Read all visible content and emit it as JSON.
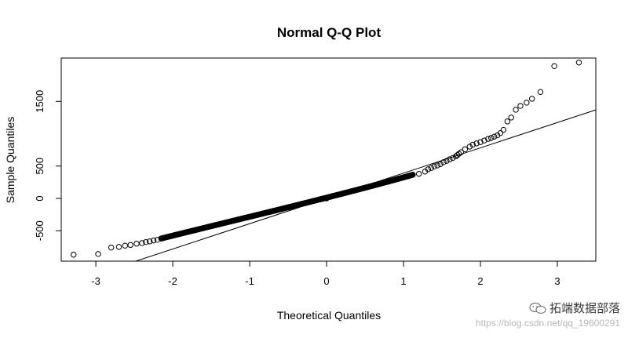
{
  "chart_data": {
    "type": "scatter",
    "title": "Normal Q-Q Plot",
    "xlabel": "Theoretical Quantiles",
    "ylabel": "Sample Quantiles",
    "xlim": [
      -3.45,
      3.5
    ],
    "ylim": [
      -970,
      2170
    ],
    "xticks": [
      -3,
      -2,
      -1,
      0,
      1,
      2,
      3
    ],
    "yticks": [
      -500,
      0,
      500,
      1500
    ],
    "xtick_labels": [
      "-3",
      "-2",
      "-1",
      "0",
      "1",
      "2",
      "3"
    ],
    "ytick_labels": [
      "-500",
      "0",
      "500",
      "1500"
    ],
    "grid": false,
    "reference_line": {
      "intercept": 0,
      "slope": 391
    },
    "points": [
      [
        -3.29,
        -870
      ],
      [
        -2.97,
        -860
      ],
      [
        -2.8,
        -760
      ],
      [
        -2.7,
        -750
      ],
      [
        -2.62,
        -730
      ],
      [
        -2.55,
        -720
      ],
      [
        -2.47,
        -700
      ],
      [
        -2.4,
        -690
      ],
      [
        -2.35,
        -675
      ],
      [
        -2.3,
        -665
      ],
      [
        -2.25,
        -650
      ],
      [
        -2.2,
        -640
      ],
      [
        -2.15,
        -620
      ],
      [
        0.0,
        0
      ],
      [
        1.12,
        365
      ],
      [
        1.2,
        380
      ],
      [
        1.28,
        415
      ],
      [
        1.32,
        450
      ],
      [
        1.36,
        470
      ],
      [
        1.4,
        495
      ],
      [
        1.44,
        510
      ],
      [
        1.48,
        530
      ],
      [
        1.52,
        560
      ],
      [
        1.56,
        580
      ],
      [
        1.6,
        605
      ],
      [
        1.64,
        625
      ],
      [
        1.68,
        650
      ],
      [
        1.7,
        670
      ],
      [
        1.72,
        690
      ],
      [
        1.75,
        715
      ],
      [
        1.8,
        760
      ],
      [
        1.86,
        800
      ],
      [
        1.9,
        830
      ],
      [
        1.95,
        850
      ],
      [
        2.0,
        870
      ],
      [
        2.05,
        895
      ],
      [
        2.1,
        920
      ],
      [
        2.14,
        935
      ],
      [
        2.18,
        955
      ],
      [
        2.22,
        975
      ],
      [
        2.26,
        1010
      ],
      [
        2.3,
        1060
      ],
      [
        2.35,
        1190
      ],
      [
        2.4,
        1250
      ],
      [
        2.46,
        1370
      ],
      [
        2.52,
        1430
      ],
      [
        2.6,
        1480
      ],
      [
        2.67,
        1540
      ],
      [
        2.78,
        1645
      ],
      [
        2.96,
        2045
      ],
      [
        3.28,
        2100
      ]
    ],
    "dense_segment": {
      "x_from": -2.15,
      "x_to": 1.12,
      "y_from": -620,
      "y_to": 365,
      "mid_slope": 350
    }
  },
  "watermark": {
    "text": "拓端数据部落",
    "url": "https://blog.csdn.net/qq_19600291"
  }
}
